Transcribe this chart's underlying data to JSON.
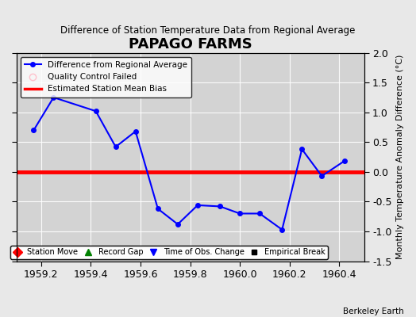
{
  "title": "PAPAGO FARMS",
  "subtitle": "Difference of Station Temperature Data from Regional Average",
  "ylabel": "Monthly Temperature Anomaly Difference (°C)",
  "xlabel_credit": "Berkeley Earth",
  "xlim": [
    1959.1,
    1960.5
  ],
  "ylim": [
    -1.5,
    2.0
  ],
  "yticks": [
    -1.5,
    -1.0,
    -0.5,
    0.0,
    0.5,
    1.0,
    1.5,
    2.0
  ],
  "xticks": [
    1959.2,
    1959.4,
    1959.6,
    1959.8,
    1960.0,
    1960.2,
    1960.4
  ],
  "bias_value": 0.0,
  "line_color": "#0000ff",
  "bias_color": "#ff0000",
  "bg_color": "#e8e8e8",
  "plot_bg_color": "#d8d8d8",
  "x_data": [
    1959.17,
    1959.25,
    1959.42,
    1959.5,
    1959.58,
    1959.67,
    1959.75,
    1959.83,
    1959.92,
    1960.0,
    1960.08,
    1960.17,
    1960.25,
    1960.33,
    1960.42
  ],
  "y_data": [
    0.7,
    1.25,
    1.02,
    0.42,
    0.68,
    -0.62,
    -0.88,
    -0.56,
    -0.58,
    -0.7,
    -0.7,
    -0.97,
    0.38,
    -0.07,
    0.18
  ]
}
